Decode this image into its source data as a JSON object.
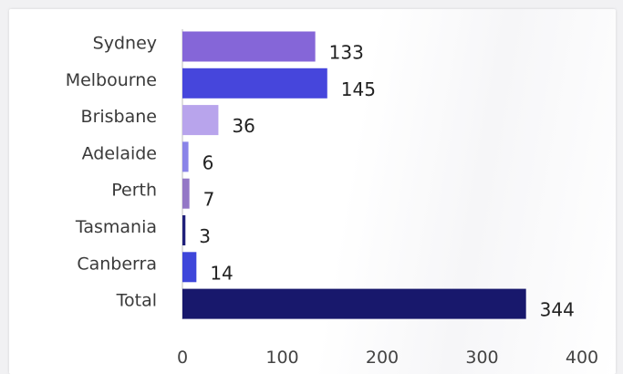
{
  "chart_data": {
    "type": "bar",
    "orientation": "horizontal",
    "title": "",
    "xlabel": "",
    "ylabel": "",
    "categories": [
      "Sydney",
      "Melbourne",
      "Brisbane",
      "Adelaide",
      "Perth",
      "Tasmania",
      "Canberra",
      "Total"
    ],
    "values": [
      133,
      145,
      36,
      6,
      7,
      3,
      14,
      344
    ],
    "colors": [
      "#8566d8",
      "#4646dc",
      "#b8a4ec",
      "#8a84e8",
      "#9478c6",
      "#20207a",
      "#3e46da",
      "#18186c"
    ],
    "xlim": [
      0,
      400
    ],
    "xticks": [
      0,
      100,
      200,
      300,
      400
    ],
    "grid": false,
    "legend": "none"
  }
}
